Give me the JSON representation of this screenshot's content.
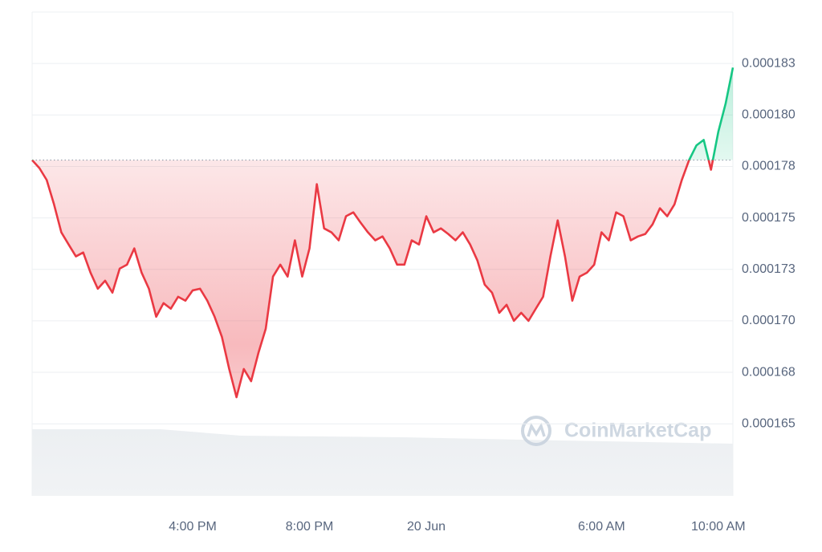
{
  "chart_data": {
    "type": "line",
    "categories": [
      null,
      null,
      null,
      null,
      null,
      null,
      null,
      null,
      null,
      null,
      null,
      null,
      null,
      null,
      null,
      null,
      null,
      null,
      null,
      null,
      null,
      null,
      "4:00 PM",
      null,
      null,
      null,
      null,
      null,
      null,
      null,
      null,
      null,
      null,
      null,
      null,
      null,
      null,
      null,
      "8:00 PM",
      null,
      null,
      null,
      null,
      null,
      null,
      null,
      null,
      null,
      null,
      null,
      null,
      null,
      null,
      null,
      "20 Jun",
      null,
      null,
      null,
      null,
      null,
      null,
      null,
      null,
      null,
      null,
      null,
      null,
      null,
      null,
      null,
      null,
      null,
      null,
      null,
      null,
      null,
      null,
      null,
      "6:00 AM",
      null,
      null,
      null,
      null,
      null,
      null,
      null,
      null,
      null,
      null,
      null,
      null,
      null,
      null,
      null,
      "10:00 AM",
      null,
      null
    ],
    "values": [
      0.00017781,
      0.00017742,
      0.00017684,
      0.00017566,
      0.0001743,
      0.00017371,
      0.00017313,
      0.00017332,
      0.00017234,
      0.00017156,
      0.00017195,
      0.00017137,
      0.00017254,
      0.00017273,
      0.00017352,
      0.00017234,
      0.00017156,
      0.0001702,
      0.00017086,
      0.00017059,
      0.00017117,
      0.00017098,
      0.00017148,
      0.00017156,
      0.00017098,
      0.0001702,
      0.00016922,
      0.00016766,
      0.00016629,
      0.00016766,
      0.00016707,
      0.00016844,
      0.00016961,
      0.00017215,
      0.00017273,
      0.00017215,
      0.00017391,
      0.00017215,
      0.00017352,
      0.00017664,
      0.00017449,
      0.0001743,
      0.00017391,
      0.00017508,
      0.00017527,
      0.00017477,
      0.0001743,
      0.00017391,
      0.0001741,
      0.00017352,
      0.00017273,
      0.00017273,
      0.00017391,
      0.00017371,
      0.00017508,
      0.0001743,
      0.00017449,
      0.00017422,
      0.00017391,
      0.0001743,
      0.00017371,
      0.00017293,
      0.00017176,
      0.00017137,
      0.00017039,
      0.00017078,
      0.00017,
      0.00017039,
      0.00017,
      0.00017059,
      0.00017117,
      0.00017313,
      0.00017488,
      0.00017313,
      0.00017098,
      0.00017215,
      0.00017234,
      0.00017273,
      0.0001743,
      0.00017391,
      0.00017527,
      0.00017508,
      0.00017391,
      0.0001741,
      0.00017422,
      0.00017469,
      0.00017547,
      0.00017508,
      0.00017566,
      0.00017684,
      0.00017781,
      0.00017852,
      0.00017879,
      0.00017734,
      0.00017918,
      0.00018055,
      0.0001823
    ],
    "up_color": "#16c784",
    "down_color": "#ea3943",
    "ylim": [
      0.0001615,
      0.000185
    ],
    "yticks": [
      0.000165,
      {
        "value": 0.0001675,
        "label": "0.000168"
      },
      {
        "value": 0.00017,
        "label": "0.000170"
      },
      {
        "value": 0.0001725,
        "label": "0.000173"
      },
      0.000175,
      {
        "value": 0.0001775,
        "label": "0.000178"
      },
      {
        "value": 0.00018,
        "label": "0.000180"
      },
      {
        "value": 0.0001825,
        "label": "0.000183"
      }
    ],
    "grid": true,
    "watermark": "CoinMarketCap"
  }
}
